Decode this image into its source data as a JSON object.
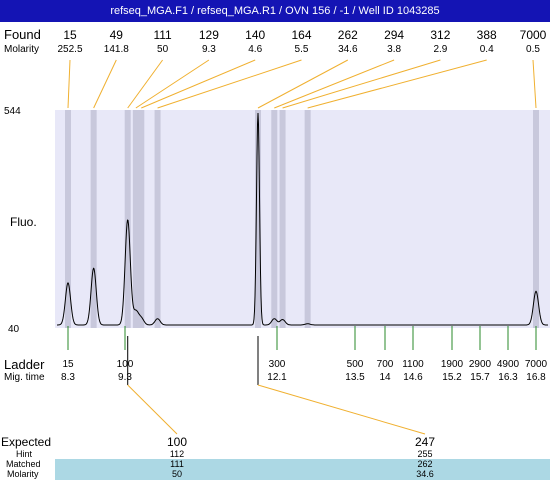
{
  "title": "refseq_MGA.F1 / refseq_MGA.R1 / OVN 156 / -1 / Well ID 1043285",
  "labels": {
    "found": "Found",
    "molarity": "Molarity",
    "fluo": "Fluo.",
    "ladder": "Ladder",
    "mig_time": "Mig. time",
    "expected": "Expected",
    "hint": "Hint",
    "matched": "Matched",
    "molarity_bottom": "Molarity"
  },
  "colors": {
    "title_bg": "#1414b4",
    "plot_bg": "#e8e8f8",
    "band": "#c8c8dc",
    "trace": "#000000",
    "leader": "#f0b030",
    "ladder_tick": "#2a8a2a",
    "matched_bg": "#acd8e4"
  },
  "chart_data": {
    "type": "line",
    "y_axis": {
      "max_label": "544",
      "min_label": "40",
      "min": 40,
      "max": 544
    },
    "x_axis": "migration time",
    "found_peaks": [
      {
        "found": "15",
        "molarity": "252.5",
        "mig_time": 8.3
      },
      {
        "found": "49",
        "molarity": "141.8",
        "mig_time": 8.75
      },
      {
        "found": "111",
        "molarity": "50",
        "mig_time": 9.35
      },
      {
        "found": "129",
        "molarity": "9.3",
        "mig_time": 9.5
      },
      {
        "found": "140",
        "molarity": "4.6",
        "mig_time": 9.6
      },
      {
        "found": "164",
        "molarity": "5.5",
        "mig_time": 9.9
      },
      {
        "found": "262",
        "molarity": "34.6",
        "mig_time": 11.75
      },
      {
        "found": "294",
        "molarity": "3.8",
        "mig_time": 12.05
      },
      {
        "found": "312",
        "molarity": "2.9",
        "mig_time": 12.2
      },
      {
        "found": "388",
        "molarity": "0.4",
        "mig_time": 12.65
      },
      {
        "found": "7000",
        "molarity": "0.5",
        "mig_time": 16.8
      }
    ],
    "ladder": [
      {
        "size": "15",
        "mig_time": "8.3",
        "t": 8.3
      },
      {
        "size": "100",
        "mig_time": "9.3",
        "t": 9.3
      },
      {
        "size": "300",
        "mig_time": "12.1",
        "t": 12.1
      },
      {
        "size": "500",
        "mig_time": "13.5",
        "t": 13.5
      },
      {
        "size": "700",
        "mig_time": "14",
        "t": 14.0
      },
      {
        "size": "1100",
        "mig_time": "14.6",
        "t": 14.6
      },
      {
        "size": "1900",
        "mig_time": "15.2",
        "t": 15.2
      },
      {
        "size": "2900",
        "mig_time": "15.7",
        "t": 15.7
      },
      {
        "size": "4900",
        "mig_time": "16.3",
        "t": 16.3
      },
      {
        "size": "7000",
        "mig_time": "16.8",
        "t": 16.8
      }
    ],
    "trace_peaks": [
      {
        "t": 8.3,
        "fluo": 140
      },
      {
        "t": 8.75,
        "fluo": 175
      },
      {
        "t": 9.35,
        "fluo": 290
      },
      {
        "t": 9.5,
        "fluo": 72
      },
      {
        "t": 9.6,
        "fluo": 56
      },
      {
        "t": 9.9,
        "fluo": 55
      },
      {
        "t": 11.75,
        "fluo": 544
      },
      {
        "t": 12.05,
        "fluo": 55
      },
      {
        "t": 12.2,
        "fluo": 53
      },
      {
        "t": 12.65,
        "fluo": 43
      },
      {
        "t": 16.8,
        "fluo": 120
      }
    ],
    "expected": [
      {
        "expected": "100",
        "hint": "112",
        "matched": "111",
        "molarity": "50",
        "mig_time": 9.35
      },
      {
        "expected": "247",
        "hint": "255",
        "matched": "262",
        "molarity": "34.6",
        "mig_time": 11.75
      }
    ]
  }
}
